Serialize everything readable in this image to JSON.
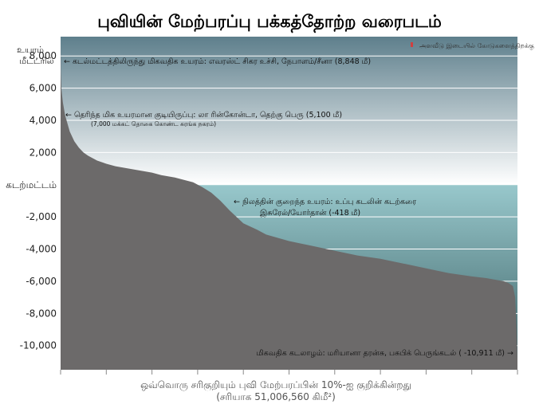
{
  "chart_data": {
    "type": "area",
    "title": "புவியின் மேற்பரப்பு பக்கத்தோற்ற வரைபடம்",
    "ylabel_line1": "உயரம்",
    "ylabel_line2": "மீட்டரில்",
    "xlabel_line1": "ஒவ்வொரு சரிகுறியும் புவி மேற்பரப்பின் 10%-ஐ குறிக்கின்றது",
    "xlabel_line2": "(சரியாக 51,006,560 கிமீ²)",
    "legend": "அளவீடு இடையில் கோடுகளைத்திறக்கு",
    "ylim": [
      -11500,
      9200
    ],
    "xlim": [
      0,
      100
    ],
    "yticks": [
      {
        "value": 8000,
        "label": "8,000"
      },
      {
        "value": 6000,
        "label": "6,000"
      },
      {
        "value": 4000,
        "label": "4,000"
      },
      {
        "value": 2000,
        "label": "2,000"
      },
      {
        "value": 0,
        "label": "கடற்மட்டம்"
      },
      {
        "value": -2000,
        "label": "-2,000"
      },
      {
        "value": -4000,
        "label": "-4,000"
      },
      {
        "value": -6000,
        "label": "-6,000"
      },
      {
        "value": -8000,
        "label": "-8,000"
      },
      {
        "value": -10000,
        "label": "-10,000"
      }
    ],
    "xticks": [
      0,
      10,
      20,
      30,
      40,
      50,
      60,
      70,
      80,
      90,
      100
    ],
    "series": [
      {
        "x": [
          0,
          0.05,
          0.2,
          0.5,
          1,
          1.5,
          2,
          3,
          4,
          5,
          6,
          8,
          10,
          12,
          15,
          18,
          20,
          22,
          25,
          27,
          29,
          30,
          31,
          33,
          35,
          37,
          40,
          43,
          45,
          50,
          55,
          60,
          65,
          70,
          75,
          80,
          85,
          90,
          93,
          95,
          97,
          98,
          99,
          99.5,
          99.8,
          100
        ],
        "y": [
          8848,
          7000,
          5900,
          5100,
          4300,
          3800,
          3300,
          2700,
          2300,
          2000,
          1800,
          1500,
          1300,
          1150,
          1000,
          850,
          750,
          600,
          450,
          300,
          150,
          0,
          -150,
          -500,
          -1000,
          -1600,
          -2400,
          -2800,
          -3100,
          -3500,
          -3800,
          -4100,
          -4400,
          -4600,
          -4900,
          -5200,
          -5500,
          -5700,
          -5800,
          -5900,
          -6000,
          -6100,
          -6300,
          -7000,
          -9000,
          -10911
        ]
      }
    ],
    "annotations": [
      {
        "label": "highest",
        "text": "← கடல்மட்டத்திலிருந்து மிகவதிக உயரம்: எவரஸ்ட் சிகர உச்சி, நேபாளம்/சீனா (8,848 மீ)"
      },
      {
        "label": "habitation",
        "text": "← தெரிந்த மிக உயரமான குடியிருப்பு: லா ரின்கோன்டா, தெற்கு பெரு (5,100 மீ)"
      },
      {
        "label": "habitation-note",
        "text": "(7,000 மக்கட் தொகை கொண்ட சுரங்க நகரம்)"
      },
      {
        "label": "lowest-land-1",
        "text": "← நிலத்தின் குறைந்த உயரம்: உப்பு கடலின் கடற்கரை"
      },
      {
        "label": "lowest-land-2",
        "text": "இசுரேல்/யோர்தான் (-418 மீ)"
      },
      {
        "label": "deepest",
        "text": "மிகவதிக கடலாழம்: மரியானா தரன்சு, பசுபிக் பெருங்கடல் ( -10,911 மீ) →"
      }
    ]
  },
  "colors": {
    "sky_top": "#5e7f8c",
    "sky_bottom": "#ffffff",
    "sea_top": "#98c8cc",
    "sea_bottom": "#3b5f63",
    "land": "#6c6a6a",
    "grid": "#ffffff",
    "legend_mark": "#d04040"
  }
}
